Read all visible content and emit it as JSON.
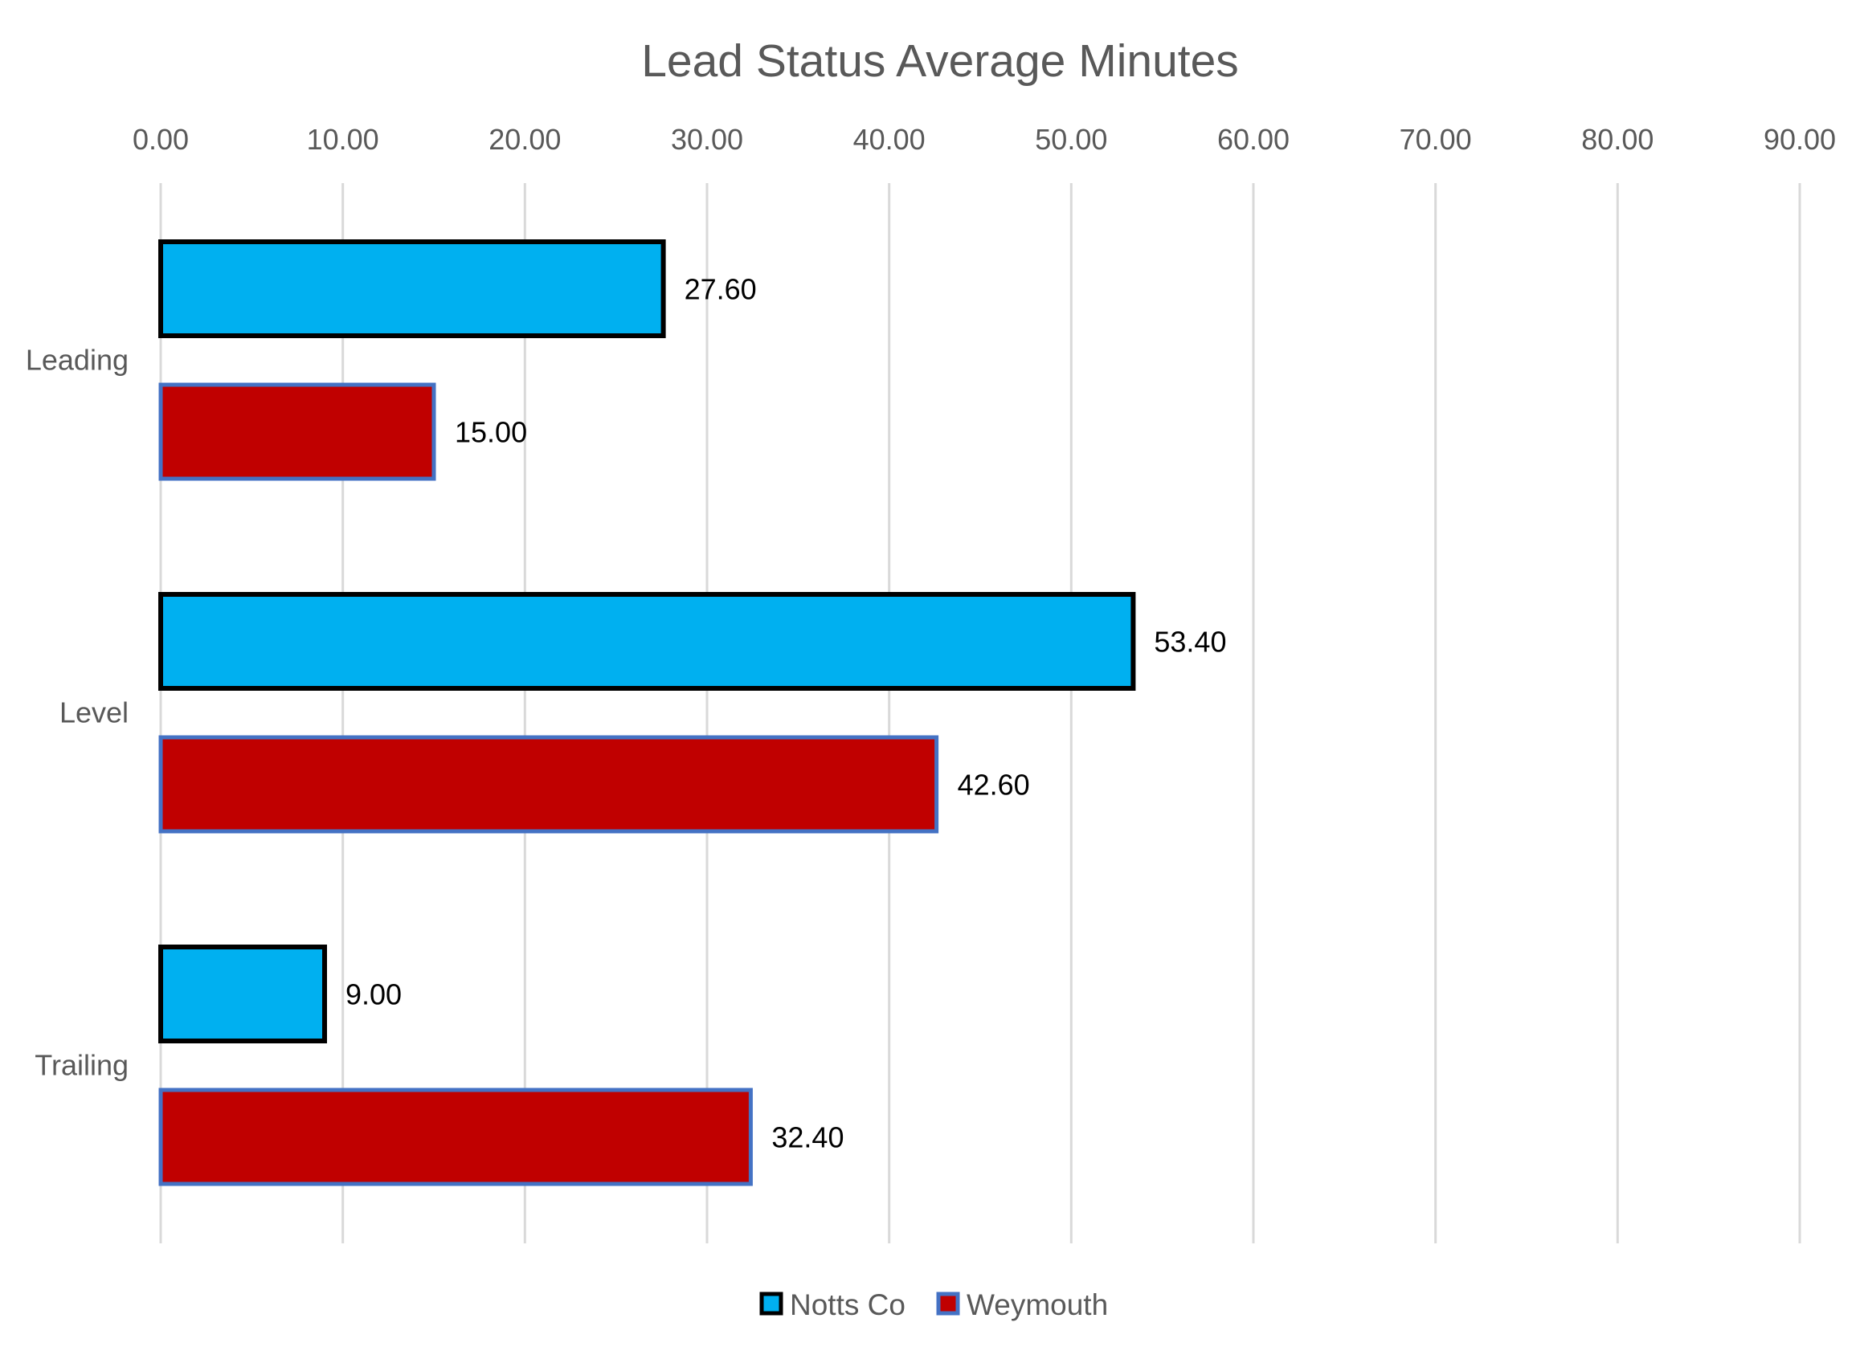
{
  "chart_data": {
    "type": "bar",
    "orientation": "horizontal",
    "title": "Lead Status Average Minutes",
    "xlabel": "",
    "ylabel": "",
    "categories": [
      "Leading",
      "Level",
      "Trailing"
    ],
    "series": [
      {
        "name": "Notts Co",
        "values": [
          27.6,
          53.4,
          9.0
        ],
        "color": "#00B0F0",
        "border": "#000000"
      },
      {
        "name": "Weymouth",
        "values": [
          15.0,
          42.6,
          32.4
        ],
        "color": "#C00000",
        "border": "#4472C4"
      }
    ],
    "data_labels": [
      [
        "27.60",
        "53.40",
        "9.00"
      ],
      [
        "15.00",
        "42.60",
        "32.40"
      ]
    ],
    "xlim": [
      0,
      90
    ],
    "ticks": [
      "0.00",
      "10.00",
      "20.00",
      "30.00",
      "40.00",
      "50.00",
      "60.00",
      "70.00",
      "80.00",
      "90.00"
    ],
    "axis_position": "top",
    "grid": true,
    "legend_position": "bottom"
  }
}
